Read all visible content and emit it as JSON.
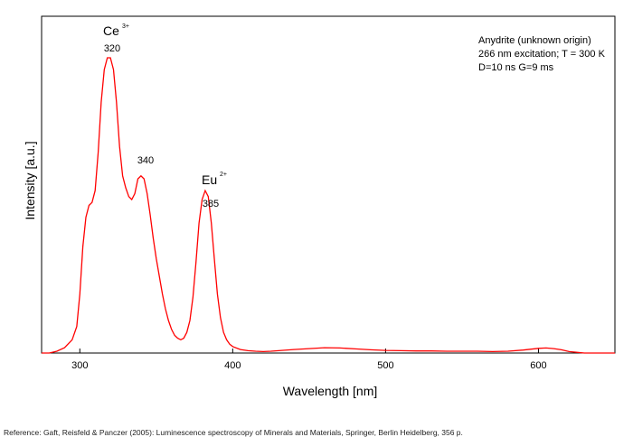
{
  "chart_data": {
    "type": "line",
    "xlabel": "Wavelength [nm]",
    "ylabel": "Intensity [a.u.]",
    "xlim": [
      275,
      650
    ],
    "ylim": [
      0,
      1.0
    ],
    "x_ticks": [
      300,
      400,
      500,
      600
    ],
    "grid": false,
    "line_color": "#ff0000",
    "series": [
      {
        "x": [
          275,
          280,
          285,
          290,
          295,
          298,
          300,
          302,
          304,
          306,
          308,
          310,
          312,
          314,
          316,
          318,
          320,
          322,
          324,
          326,
          328,
          330,
          332,
          334,
          336,
          338,
          340,
          342,
          344,
          346,
          348,
          350,
          352,
          354,
          356,
          358,
          360,
          362,
          364,
          366,
          368,
          370,
          372,
          374,
          376,
          378,
          380,
          382,
          384,
          386,
          388,
          390,
          392,
          394,
          396,
          398,
          400,
          405,
          410,
          415,
          420,
          425,
          430,
          440,
          450,
          460,
          470,
          480,
          490,
          500,
          510,
          520,
          530,
          540,
          550,
          560,
          570,
          580,
          590,
          600,
          605,
          610,
          615,
          620,
          630,
          640,
          650
        ],
        "y": [
          0.0,
          0.0,
          0.006,
          0.018,
          0.045,
          0.09,
          0.2,
          0.36,
          0.46,
          0.5,
          0.51,
          0.55,
          0.68,
          0.85,
          0.96,
          1.0,
          1.0,
          0.96,
          0.85,
          0.7,
          0.6,
          0.56,
          0.53,
          0.52,
          0.54,
          0.59,
          0.6,
          0.59,
          0.54,
          0.47,
          0.39,
          0.32,
          0.26,
          0.2,
          0.15,
          0.11,
          0.08,
          0.06,
          0.05,
          0.045,
          0.05,
          0.07,
          0.11,
          0.19,
          0.31,
          0.44,
          0.52,
          0.55,
          0.53,
          0.44,
          0.32,
          0.2,
          0.12,
          0.07,
          0.045,
          0.03,
          0.022,
          0.012,
          0.008,
          0.006,
          0.005,
          0.006,
          0.008,
          0.012,
          0.015,
          0.018,
          0.017,
          0.014,
          0.011,
          0.009,
          0.008,
          0.007,
          0.007,
          0.006,
          0.006,
          0.006,
          0.005,
          0.006,
          0.01,
          0.016,
          0.017,
          0.015,
          0.011,
          0.005,
          0.0,
          0.0,
          0.0
        ]
      }
    ],
    "annotations": [
      {
        "text": "320",
        "x": 320
      },
      {
        "text": "340",
        "x": 340
      },
      {
        "text": "385",
        "x": 385
      }
    ],
    "ions": [
      {
        "name": "Ce",
        "charge": "3+"
      },
      {
        "name": "Eu",
        "charge": "2+"
      }
    ],
    "info_box": [
      "Anydrite (unknown origin)",
      "266 nm excitation; T = 300 K",
      "D=10 ns G=9 ms"
    ]
  },
  "reference": "Reference: Gaft, Reisfeld & Panczer (2005): Luminescence spectroscopy of Minerals and Materials, Springer, Berlin Heidelberg, 356 p."
}
